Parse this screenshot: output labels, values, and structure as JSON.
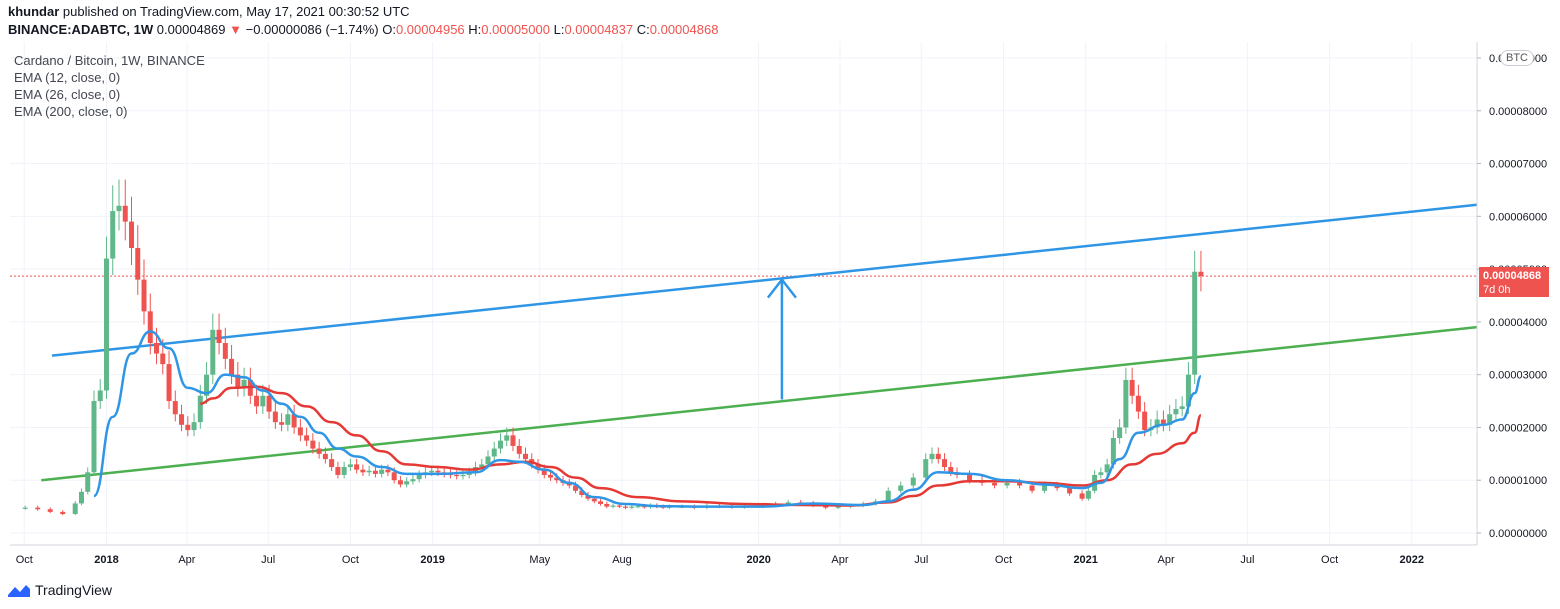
{
  "header": {
    "publisher_user": "khundar",
    "publisher_text": "published on TradingView.com, May 17, 2021 00:30:52 UTC",
    "symbol": "BINANCE:ADABTC, 1W",
    "last": "0.00004869",
    "change_arrow": "▼",
    "change": "−0.00000086 (−1.74%)",
    "o_label": "O:",
    "o": "0.00004956",
    "h_label": "H:",
    "h": "0.00005000",
    "l_label": "L:",
    "l": "0.00004837",
    "c_label": "C:",
    "c": "0.00004868"
  },
  "legend": {
    "title": "Cardano / Bitcoin, 1W, BINANCE",
    "ema1": "EMA (12, close, 0)",
    "ema2": "EMA (26, close, 0)",
    "ema3": "EMA (200, close, 0)"
  },
  "price_tag": {
    "value": "0.00004868",
    "countdown": "7d 0h"
  },
  "currency_badge": "BTC",
  "branding": {
    "name": "TradingView"
  },
  "colors": {
    "up": "#26a69a",
    "up_body": "#5fb78a",
    "down": "#ef5350",
    "ema_fast": "#2f96e6",
    "ema_slow": "#e53935",
    "trend_upper": "#2f96e6",
    "trend_lower": "#4caf50",
    "grid": "#f0f3fa"
  },
  "chart_data": {
    "type": "candlestick",
    "title": "Cardano / Bitcoin, 1W, BINANCE",
    "y_axis": {
      "ticks": [
        "0.00000000",
        "0.00001000",
        "0.00002000",
        "0.00003000",
        "0.00004000",
        "0.00005000",
        "0.00006000",
        "0.00007000",
        "0.00008000",
        "0.00009000"
      ],
      "ylim": [
        0,
        9e-05
      ],
      "position": "right"
    },
    "x_axis": {
      "ticks": [
        "Oct",
        "2018",
        "Apr",
        "Jul",
        "Oct",
        "2019",
        "May",
        "Aug",
        "2020",
        "Apr",
        "Jul",
        "Oct",
        "2021",
        "Apr",
        "Jul",
        "Oct",
        "2022"
      ],
      "tick_dates": [
        "2017-10-01",
        "2018-01-01",
        "2018-04-01",
        "2018-07-01",
        "2018-10-01",
        "2019-01-01",
        "2019-05-01",
        "2019-08-01",
        "2020-01-01",
        "2020-04-01",
        "2020-07-01",
        "2020-10-01",
        "2021-01-01",
        "2021-04-01",
        "2021-07-01",
        "2021-10-01",
        "2022-01-01"
      ],
      "xlim": [
        "2017-09-15",
        "2022-03-15"
      ]
    },
    "close_series": [
      [
        "2017-10-02",
        4.8e-06
      ],
      [
        "2017-10-16",
        4.5e-06
      ],
      [
        "2017-10-30",
        4e-06
      ],
      [
        "2017-11-13",
        3.6e-06
      ],
      [
        "2017-11-27",
        5.6e-06
      ],
      [
        "2017-12-04",
        7.8e-06
      ],
      [
        "2017-12-11",
        1.15e-05
      ],
      [
        "2017-12-18",
        2.5e-05
      ],
      [
        "2017-12-25",
        2.7e-05
      ],
      [
        "2018-01-01",
        5.2e-05
      ],
      [
        "2018-01-08",
        6.1e-05
      ],
      [
        "2018-01-15",
        6.2e-05
      ],
      [
        "2018-01-22",
        5.9e-05
      ],
      [
        "2018-01-29",
        5.4e-05
      ],
      [
        "2018-02-05",
        4.8e-05
      ],
      [
        "2018-02-12",
        4.2e-05
      ],
      [
        "2018-02-19",
        3.6e-05
      ],
      [
        "2018-02-26",
        3.4e-05
      ],
      [
        "2018-03-05",
        3.2e-05
      ],
      [
        "2018-03-12",
        2.5e-05
      ],
      [
        "2018-03-19",
        2.25e-05
      ],
      [
        "2018-03-26",
        2.05e-05
      ],
      [
        "2018-04-02",
        1.95e-05
      ],
      [
        "2018-04-09",
        2.1e-05
      ],
      [
        "2018-04-16",
        2.6e-05
      ],
      [
        "2018-04-23",
        3e-05
      ],
      [
        "2018-04-30",
        3.85e-05
      ],
      [
        "2018-05-07",
        3.6e-05
      ],
      [
        "2018-05-14",
        3.3e-05
      ],
      [
        "2018-05-21",
        3e-05
      ],
      [
        "2018-05-28",
        2.75e-05
      ],
      [
        "2018-06-04",
        2.9e-05
      ],
      [
        "2018-06-11",
        2.6e-05
      ],
      [
        "2018-06-18",
        2.4e-05
      ],
      [
        "2018-06-25",
        2.6e-05
      ],
      [
        "2018-07-02",
        2.3e-05
      ],
      [
        "2018-07-09",
        2.1e-05
      ],
      [
        "2018-07-16",
        2.05e-05
      ],
      [
        "2018-07-23",
        2.25e-05
      ],
      [
        "2018-07-30",
        2e-05
      ],
      [
        "2018-08-06",
        1.85e-05
      ],
      [
        "2018-08-13",
        1.75e-05
      ],
      [
        "2018-08-20",
        1.6e-05
      ],
      [
        "2018-08-27",
        1.5e-05
      ],
      [
        "2018-09-03",
        1.4e-05
      ],
      [
        "2018-09-10",
        1.25e-05
      ],
      [
        "2018-09-17",
        1.1e-05
      ],
      [
        "2018-09-24",
        1.25e-05
      ],
      [
        "2018-10-01",
        1.3e-05
      ],
      [
        "2018-10-08",
        1.2e-05
      ],
      [
        "2018-10-15",
        1.15e-05
      ],
      [
        "2018-10-22",
        1.18e-05
      ],
      [
        "2018-10-29",
        1.12e-05
      ],
      [
        "2018-11-05",
        1.2e-05
      ],
      [
        "2018-11-12",
        1.15e-05
      ],
      [
        "2018-11-19",
        1e-05
      ],
      [
        "2018-11-26",
        9.2e-06
      ],
      [
        "2018-12-03",
        9.8e-06
      ],
      [
        "2018-12-10",
        1.02e-05
      ],
      [
        "2018-12-17",
        1.1e-05
      ],
      [
        "2018-12-24",
        1.15e-05
      ],
      [
        "2018-12-31",
        1.18e-05
      ],
      [
        "2019-01-07",
        1.15e-05
      ],
      [
        "2019-01-14",
        1.12e-05
      ],
      [
        "2019-01-21",
        1.1e-05
      ],
      [
        "2019-01-28",
        1.08e-05
      ],
      [
        "2019-02-04",
        1.1e-05
      ],
      [
        "2019-02-11",
        1.15e-05
      ],
      [
        "2019-02-18",
        1.25e-05
      ],
      [
        "2019-02-25",
        1.3e-05
      ],
      [
        "2019-03-04",
        1.45e-05
      ],
      [
        "2019-03-11",
        1.6e-05
      ],
      [
        "2019-03-18",
        1.75e-05
      ],
      [
        "2019-03-25",
        1.85e-05
      ],
      [
        "2019-04-01",
        1.65e-05
      ],
      [
        "2019-04-08",
        1.5e-05
      ],
      [
        "2019-04-15",
        1.4e-05
      ],
      [
        "2019-04-22",
        1.3e-05
      ],
      [
        "2019-04-29",
        1.2e-05
      ],
      [
        "2019-05-06",
        1.1e-05
      ],
      [
        "2019-05-13",
        1.05e-05
      ],
      [
        "2019-05-20",
        1e-05
      ],
      [
        "2019-05-27",
        9.5e-06
      ],
      [
        "2019-06-03",
        9e-06
      ],
      [
        "2019-06-10",
        8e-06
      ],
      [
        "2019-06-17",
        7.2e-06
      ],
      [
        "2019-06-24",
        6.5e-06
      ],
      [
        "2019-07-01",
        6e-06
      ],
      [
        "2019-07-08",
        5.5e-06
      ],
      [
        "2019-07-15",
        5e-06
      ],
      [
        "2019-07-22",
        5.2e-06
      ],
      [
        "2019-07-29",
        5e-06
      ],
      [
        "2019-08-05",
        4.8e-06
      ],
      [
        "2019-08-12",
        5e-06
      ],
      [
        "2019-08-19",
        5.1e-06
      ],
      [
        "2019-08-26",
        4.9e-06
      ],
      [
        "2019-09-02",
        5.2e-06
      ],
      [
        "2019-09-09",
        5e-06
      ],
      [
        "2019-09-16",
        4.8e-06
      ],
      [
        "2019-09-23",
        5e-06
      ],
      [
        "2019-10-07",
        5e-06
      ],
      [
        "2019-10-21",
        4.8e-06
      ],
      [
        "2019-11-04",
        5.2e-06
      ],
      [
        "2019-11-18",
        5e-06
      ],
      [
        "2019-12-02",
        4.9e-06
      ],
      [
        "2019-12-16",
        5e-06
      ],
      [
        "2020-01-06",
        5.2e-06
      ],
      [
        "2020-01-20",
        5.5e-06
      ],
      [
        "2020-02-03",
        5.8e-06
      ],
      [
        "2020-02-17",
        5.6e-06
      ],
      [
        "2020-03-02",
        5.2e-06
      ],
      [
        "2020-03-16",
        4.8e-06
      ],
      [
        "2020-03-30",
        5e-06
      ],
      [
        "2020-04-13",
        5.2e-06
      ],
      [
        "2020-04-27",
        5.5e-06
      ],
      [
        "2020-05-11",
        6e-06
      ],
      [
        "2020-05-25",
        8e-06
      ],
      [
        "2020-06-08",
        9e-06
      ],
      [
        "2020-06-22",
        1.05e-05
      ],
      [
        "2020-07-06",
        1.4e-05
      ],
      [
        "2020-07-13",
        1.5e-05
      ],
      [
        "2020-07-20",
        1.4e-05
      ],
      [
        "2020-07-27",
        1.25e-05
      ],
      [
        "2020-08-03",
        1.15e-05
      ],
      [
        "2020-08-10",
        1.1e-05
      ],
      [
        "2020-08-24",
        1e-05
      ],
      [
        "2020-09-07",
        9.5e-06
      ],
      [
        "2020-09-21",
        9e-06
      ],
      [
        "2020-10-05",
        9.5e-06
      ],
      [
        "2020-10-19",
        9e-06
      ],
      [
        "2020-11-02",
        8e-06
      ],
      [
        "2020-11-16",
        9e-06
      ],
      [
        "2020-11-30",
        8.5e-06
      ],
      [
        "2020-12-14",
        7.5e-06
      ],
      [
        "2020-12-28",
        6.5e-06
      ],
      [
        "2021-01-04",
        8e-06
      ],
      [
        "2021-01-11",
        1.1e-05
      ],
      [
        "2021-01-18",
        1.15e-05
      ],
      [
        "2021-01-25",
        1.3e-05
      ],
      [
        "2021-02-01",
        1.8e-05
      ],
      [
        "2021-02-08",
        2e-05
      ],
      [
        "2021-02-15",
        2.9e-05
      ],
      [
        "2021-02-22",
        2.6e-05
      ],
      [
        "2021-03-01",
        2.3e-05
      ],
      [
        "2021-03-08",
        1.95e-05
      ],
      [
        "2021-03-15",
        2e-05
      ],
      [
        "2021-03-22",
        2.15e-05
      ],
      [
        "2021-03-29",
        2.05e-05
      ],
      [
        "2021-04-05",
        2.25e-05
      ],
      [
        "2021-04-12",
        2.35e-05
      ],
      [
        "2021-04-19",
        2.4e-05
      ],
      [
        "2021-04-26",
        3e-05
      ],
      [
        "2021-05-03",
        4.95e-05
      ],
      [
        "2021-05-10",
        4.87e-05
      ]
    ],
    "ema_fast": [
      [
        "2017-12-18",
        7e-06
      ],
      [
        "2018-01-08",
        2.2e-05
      ],
      [
        "2018-01-29",
        3.4e-05
      ],
      [
        "2018-02-19",
        3.82e-05
      ],
      [
        "2018-03-12",
        3.5e-05
      ],
      [
        "2018-04-02",
        2.75e-05
      ],
      [
        "2018-04-23",
        2.65e-05
      ],
      [
        "2018-05-14",
        3e-05
      ],
      [
        "2018-06-04",
        2.95e-05
      ],
      [
        "2018-06-25",
        2.7e-05
      ],
      [
        "2018-07-16",
        2.45e-05
      ],
      [
        "2018-08-06",
        2.2e-05
      ],
      [
        "2018-08-27",
        1.9e-05
      ],
      [
        "2018-09-17",
        1.6e-05
      ],
      [
        "2018-10-08",
        1.45e-05
      ],
      [
        "2018-11-05",
        1.25e-05
      ],
      [
        "2018-12-03",
        1.12e-05
      ],
      [
        "2019-01-07",
        1.12e-05
      ],
      [
        "2019-02-18",
        1.15e-05
      ],
      [
        "2019-03-18",
        1.38e-05
      ],
      [
        "2019-04-08",
        1.35e-05
      ],
      [
        "2019-05-06",
        1.2e-05
      ],
      [
        "2019-06-03",
        9.5e-06
      ],
      [
        "2019-07-01",
        6.8e-06
      ],
      [
        "2019-08-05",
        5.5e-06
      ],
      [
        "2019-09-09",
        5.1e-06
      ],
      [
        "2019-11-04",
        5e-06
      ],
      [
        "2020-01-06",
        5e-06
      ],
      [
        "2020-03-02",
        5.6e-06
      ],
      [
        "2020-04-27",
        5.3e-06
      ],
      [
        "2020-05-25",
        6e-06
      ],
      [
        "2020-06-22",
        8.2e-06
      ],
      [
        "2020-07-20",
        1.15e-05
      ],
      [
        "2020-08-24",
        1.12e-05
      ],
      [
        "2020-10-05",
        1e-05
      ],
      [
        "2020-11-16",
        9.2e-06
      ],
      [
        "2020-12-28",
        8.5e-06
      ],
      [
        "2021-01-18",
        9.5e-06
      ],
      [
        "2021-02-08",
        1.4e-05
      ],
      [
        "2021-03-01",
        1.9e-05
      ],
      [
        "2021-03-29",
        2.05e-05
      ],
      [
        "2021-04-19",
        2.15e-05
      ],
      [
        "2021-05-03",
        2.65e-05
      ],
      [
        "2021-05-10",
        2.97e-05
      ]
    ],
    "ema_slow": [
      [
        "2018-04-16",
        2.45e-05
      ],
      [
        "2018-04-30",
        2.55e-05
      ],
      [
        "2018-05-21",
        2.75e-05
      ],
      [
        "2018-06-18",
        2.77e-05
      ],
      [
        "2018-07-16",
        2.65e-05
      ],
      [
        "2018-08-13",
        2.4e-05
      ],
      [
        "2018-09-10",
        2.1e-05
      ],
      [
        "2018-10-08",
        1.85e-05
      ],
      [
        "2018-11-05",
        1.55e-05
      ],
      [
        "2018-12-03",
        1.3e-05
      ],
      [
        "2019-01-07",
        1.25e-05
      ],
      [
        "2019-02-11",
        1.2e-05
      ],
      [
        "2019-03-18",
        1.3e-05
      ],
      [
        "2019-04-15",
        1.35e-05
      ],
      [
        "2019-05-13",
        1.25e-05
      ],
      [
        "2019-06-10",
        1.05e-05
      ],
      [
        "2019-07-08",
        8.5e-06
      ],
      [
        "2019-08-19",
        6.8e-06
      ],
      [
        "2019-10-07",
        6e-06
      ],
      [
        "2019-12-16",
        5.5e-06
      ],
      [
        "2020-02-17",
        5.3e-06
      ],
      [
        "2020-04-13",
        5.2e-06
      ],
      [
        "2020-05-25",
        5.8e-06
      ],
      [
        "2020-06-22",
        7e-06
      ],
      [
        "2020-07-20",
        9e-06
      ],
      [
        "2020-08-24",
        9.8e-06
      ],
      [
        "2020-10-05",
        9.8e-06
      ],
      [
        "2020-11-16",
        9.5e-06
      ],
      [
        "2020-12-28",
        9e-06
      ],
      [
        "2021-01-25",
        1e-05
      ],
      [
        "2021-02-22",
        1.3e-05
      ],
      [
        "2021-03-22",
        1.5e-05
      ],
      [
        "2021-04-19",
        1.7e-05
      ],
      [
        "2021-05-03",
        1.9e-05
      ],
      [
        "2021-05-10",
        2.23e-05
      ]
    ],
    "trendlines": [
      {
        "name": "upper",
        "from": [
          "2017-11-01",
          3.36e-05
        ],
        "to": [
          "2022-03-15",
          6.22e-05
        ]
      },
      {
        "name": "lower",
        "from": [
          "2017-10-20",
          1e-05
        ],
        "to": [
          "2022-03-15",
          3.9e-05
        ]
      }
    ],
    "annotation_arrow": {
      "x": "2020-01-27",
      "from": 2.53e-05,
      "to": 4.8e-05
    },
    "last_price": 4.868e-05,
    "grid": true
  }
}
